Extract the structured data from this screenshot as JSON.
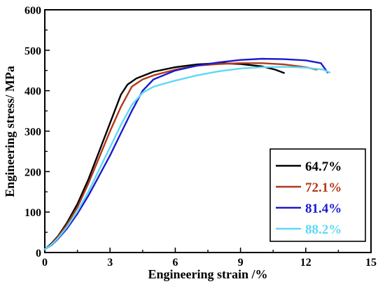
{
  "chart_data": {
    "type": "line",
    "xlabel": "Engineering strain /%",
    "ylabel": "Engineering stress/ MPa",
    "xlim": [
      0,
      15
    ],
    "ylim": [
      0,
      600
    ],
    "xticks": [
      0,
      3,
      6,
      9,
      12,
      15
    ],
    "yticks": [
      0,
      100,
      200,
      300,
      400,
      500,
      600
    ],
    "legend_position": "bottom-right",
    "grid": false,
    "series": [
      {
        "name": "64.7%",
        "color": "#000000",
        "x": [
          0,
          0.3,
          0.6,
          1.0,
          1.5,
          2.0,
          2.5,
          3.0,
          3.5,
          3.8,
          4.2,
          5.0,
          6.0,
          7.0,
          8.0,
          9.0,
          10.0,
          10.6,
          11.0
        ],
        "y": [
          8,
          22,
          40,
          72,
          120,
          180,
          250,
          320,
          390,
          415,
          430,
          447,
          458,
          465,
          468,
          466,
          460,
          452,
          444
        ]
      },
      {
        "name": "72.1%",
        "color": "#b03a1a",
        "x": [
          0,
          0.3,
          0.6,
          1.0,
          1.5,
          2.0,
          2.5,
          3.0,
          3.5,
          4.0,
          4.5,
          5.0,
          6.0,
          7.0,
          8.0,
          9.0,
          10.0,
          11.0,
          12.0,
          12.5
        ],
        "y": [
          8,
          20,
          38,
          68,
          112,
          170,
          235,
          300,
          360,
          410,
          428,
          438,
          452,
          462,
          466,
          468,
          468,
          465,
          458,
          452
        ]
      },
      {
        "name": "81.4%",
        "color": "#1a1ad0",
        "x": [
          0,
          0.3,
          0.6,
          1.0,
          1.5,
          2.0,
          2.5,
          3.0,
          3.5,
          4.0,
          4.5,
          5.0,
          6.0,
          7.0,
          8.0,
          9.0,
          10.0,
          11.0,
          12.0,
          12.7,
          13.0
        ],
        "y": [
          8,
          18,
          33,
          58,
          96,
          140,
          190,
          240,
          295,
          350,
          400,
          428,
          450,
          462,
          470,
          476,
          479,
          478,
          475,
          468,
          445
        ]
      },
      {
        "name": "88.2%",
        "color": "#5fd8f5",
        "x": [
          0,
          0.3,
          0.6,
          1.0,
          1.5,
          2.0,
          2.5,
          3.0,
          3.5,
          4.0,
          4.5,
          5.0,
          6.0,
          7.0,
          8.0,
          9.0,
          10.0,
          11.0,
          12.0,
          12.8,
          13.1
        ],
        "y": [
          8,
          19,
          35,
          62,
          102,
          150,
          205,
          260,
          315,
          365,
          395,
          410,
          425,
          438,
          448,
          455,
          458,
          459,
          457,
          452,
          445
        ]
      }
    ]
  }
}
